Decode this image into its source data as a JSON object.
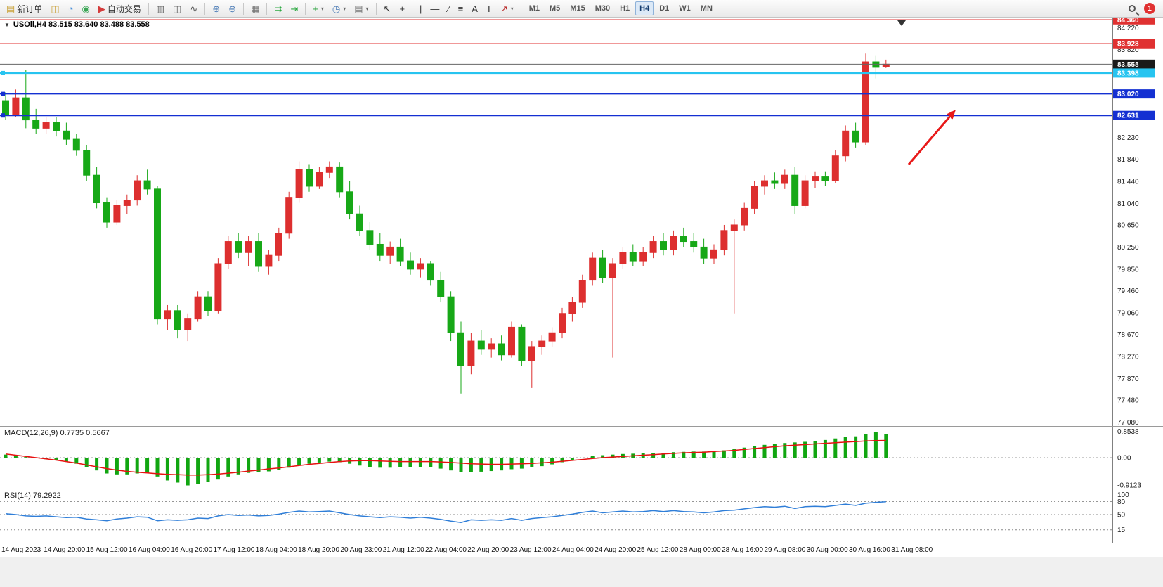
{
  "icons": {
    "collapse": "▼",
    "caret": "▾"
  },
  "toolbar": {
    "groups": [
      [
        {
          "name": "new-order-button",
          "glyph": "▤",
          "color": "#c9a23a",
          "label": "新订单"
        },
        {
          "name": "charts-button",
          "glyph": "◫",
          "color": "#c9a23a"
        },
        {
          "name": "profiles-button",
          "glyph": "◔",
          "color": "#4a90d9"
        },
        {
          "name": "community-button",
          "glyph": "◉",
          "color": "#3aa655"
        },
        {
          "name": "auto-trading-button",
          "glyph": "▶",
          "color": "#d43c3c",
          "label": "自动交易"
        }
      ],
      [
        {
          "name": "bar-chart-button",
          "glyph": "▥",
          "color": "#555"
        },
        {
          "name": "candlestick-chart-button",
          "glyph": "◫",
          "color": "#555"
        },
        {
          "name": "line-chart-button",
          "glyph": "∿",
          "color": "#555"
        }
      ],
      [
        {
          "name": "zoom-in-button",
          "glyph": "⊕",
          "color": "#4a7ab5"
        },
        {
          "name": "zoom-out-button",
          "glyph": "⊖",
          "color": "#4a7ab5"
        }
      ],
      [
        {
          "name": "tile-windows-button",
          "glyph": "▦",
          "color": "#777"
        }
      ],
      [
        {
          "name": "auto-scroll-button",
          "glyph": "⇉",
          "color": "#2faa44"
        },
        {
          "name": "chart-shift-button",
          "glyph": "⇥",
          "color": "#2faa44"
        }
      ],
      [
        {
          "name": "add-indicator-button",
          "glyph": "+",
          "color": "#1f9e33",
          "caret": true
        },
        {
          "name": "periods-button",
          "glyph": "◷",
          "color": "#4a7ab5",
          "caret": true
        },
        {
          "name": "templates-button",
          "glyph": "▤",
          "color": "#777",
          "caret": true
        }
      ],
      [
        {
          "name": "cursor-button",
          "glyph": "↖",
          "color": "#333"
        },
        {
          "name": "crosshair-button",
          "glyph": "+",
          "color": "#333"
        }
      ],
      [
        {
          "name": "vertical-line-button",
          "glyph": "|",
          "color": "#333"
        },
        {
          "name": "horizontal-line-button",
          "glyph": "—",
          "color": "#333"
        },
        {
          "name": "trendline-button",
          "glyph": "∕",
          "color": "#333"
        },
        {
          "name": "fibonacci-button",
          "glyph": "≡",
          "color": "#333"
        },
        {
          "name": "text-button",
          "glyph": "A",
          "color": "#333"
        },
        {
          "name": "text-label-button",
          "glyph": "T",
          "color": "#333"
        },
        {
          "name": "arrow-tools-button",
          "glyph": "↗",
          "color": "#b33",
          "caret": true
        }
      ]
    ],
    "timeframes": [
      "M1",
      "M5",
      "M15",
      "M30",
      "H1",
      "H4",
      "D1",
      "W1",
      "MN"
    ],
    "active_timeframe": "H4",
    "notification_count": "1"
  },
  "chart": {
    "symbol": "USOil",
    "period": "H4",
    "title": "USOil,H4  83.515 83.640 83.488 83.558",
    "ohlc": {
      "open": "83.515",
      "high": "83.640",
      "low": "83.488",
      "close": "83.558"
    }
  },
  "chart_data": {
    "type": "candlestick",
    "title": "USOil H4",
    "ylim": [
      77.05,
      84.3
    ],
    "colors": {
      "up": "#dd2f2f",
      "down": "#17a817"
    },
    "y_axis_ticks": [
      "84.220",
      "83.820",
      "82.230",
      "81.840",
      "81.440",
      "81.040",
      "80.650",
      "80.250",
      "79.850",
      "79.460",
      "79.060",
      "78.670",
      "78.270",
      "77.870",
      "77.480",
      "77.080"
    ],
    "x_labels": [
      "14 Aug 2023",
      "14 Aug 20:00",
      "15 Aug 12:00",
      "16 Aug 04:00",
      "16 Aug 20:00",
      "17 Aug 12:00",
      "18 Aug 04:00",
      "18 Aug 20:00",
      "20 Aug 23:00",
      "21 Aug 12:00",
      "22 Aug 04:00",
      "22 Aug 20:00",
      "23 Aug 12:00",
      "24 Aug 04:00",
      "24 Aug 20:00",
      "25 Aug 12:00",
      "28 Aug 00:00",
      "28 Aug 16:00",
      "29 Aug 08:00",
      "30 Aug 00:00",
      "30 Aug 16:00",
      "31 Aug 08:00"
    ],
    "candles": [
      [
        82.9,
        83.05,
        82.55,
        82.65
      ],
      [
        82.65,
        83.1,
        82.6,
        82.95
      ],
      [
        82.95,
        83.45,
        82.4,
        82.55
      ],
      [
        82.55,
        82.75,
        82.3,
        82.4
      ],
      [
        82.4,
        82.6,
        82.3,
        82.5
      ],
      [
        82.5,
        82.6,
        82.25,
        82.35
      ],
      [
        82.35,
        82.5,
        82.1,
        82.2
      ],
      [
        82.2,
        82.3,
        81.9,
        82.0
      ],
      [
        82.0,
        82.1,
        81.45,
        81.55
      ],
      [
        81.55,
        81.7,
        80.95,
        81.05
      ],
      [
        81.05,
        81.15,
        80.6,
        80.7
      ],
      [
        80.7,
        81.1,
        80.65,
        81.0
      ],
      [
        81.0,
        81.2,
        80.85,
        81.1
      ],
      [
        81.1,
        81.55,
        81.0,
        81.45
      ],
      [
        81.45,
        81.65,
        81.2,
        81.3
      ],
      [
        81.3,
        81.35,
        78.85,
        78.95
      ],
      [
        78.95,
        79.2,
        78.75,
        79.1
      ],
      [
        79.1,
        79.2,
        78.6,
        78.75
      ],
      [
        78.75,
        79.05,
        78.55,
        78.95
      ],
      [
        78.95,
        79.45,
        78.9,
        79.35
      ],
      [
        79.35,
        79.45,
        79.0,
        79.1
      ],
      [
        79.1,
        80.05,
        79.05,
        79.95
      ],
      [
        79.95,
        80.45,
        79.85,
        80.35
      ],
      [
        80.35,
        80.5,
        80.05,
        80.15
      ],
      [
        80.15,
        80.45,
        79.9,
        80.35
      ],
      [
        80.35,
        80.5,
        79.8,
        79.9
      ],
      [
        79.9,
        80.2,
        79.75,
        80.1
      ],
      [
        80.1,
        80.6,
        80.0,
        80.5
      ],
      [
        80.5,
        81.25,
        80.4,
        81.15
      ],
      [
        81.15,
        81.8,
        81.05,
        81.65
      ],
      [
        81.65,
        81.75,
        81.25,
        81.35
      ],
      [
        81.35,
        81.7,
        81.3,
        81.6
      ],
      [
        81.6,
        81.8,
        81.5,
        81.7
      ],
      [
        81.7,
        81.78,
        81.15,
        81.25
      ],
      [
        81.25,
        81.45,
        80.75,
        80.85
      ],
      [
        80.85,
        81.0,
        80.45,
        80.55
      ],
      [
        80.55,
        80.7,
        80.2,
        80.3
      ],
      [
        80.3,
        80.5,
        80.0,
        80.1
      ],
      [
        80.1,
        80.35,
        79.95,
        80.25
      ],
      [
        80.25,
        80.4,
        79.9,
        80.0
      ],
      [
        80.0,
        80.15,
        79.75,
        79.85
      ],
      [
        79.85,
        80.05,
        79.7,
        79.95
      ],
      [
        79.95,
        80.0,
        79.55,
        79.65
      ],
      [
        79.65,
        79.8,
        79.25,
        79.35
      ],
      [
        79.35,
        79.45,
        78.55,
        78.7
      ],
      [
        78.7,
        78.9,
        77.6,
        78.1
      ],
      [
        78.1,
        78.7,
        77.95,
        78.55
      ],
      [
        78.55,
        78.75,
        78.3,
        78.4
      ],
      [
        78.4,
        78.6,
        78.25,
        78.5
      ],
      [
        78.5,
        78.65,
        78.2,
        78.3
      ],
      [
        78.3,
        78.9,
        78.25,
        78.8
      ],
      [
        78.8,
        78.85,
        78.1,
        78.2
      ],
      [
        78.2,
        78.55,
        77.7,
        78.45
      ],
      [
        78.45,
        78.65,
        78.3,
        78.55
      ],
      [
        78.55,
        78.8,
        78.45,
        78.7
      ],
      [
        78.7,
        79.15,
        78.6,
        79.05
      ],
      [
        79.05,
        79.35,
        78.9,
        79.25
      ],
      [
        79.25,
        79.75,
        79.15,
        79.65
      ],
      [
        79.65,
        80.15,
        79.55,
        80.05
      ],
      [
        80.05,
        80.2,
        79.6,
        79.7
      ],
      [
        79.7,
        80.05,
        78.25,
        79.95
      ],
      [
        79.95,
        80.25,
        79.85,
        80.15
      ],
      [
        80.15,
        80.3,
        79.9,
        80.0
      ],
      [
        80.0,
        80.25,
        79.9,
        80.15
      ],
      [
        80.15,
        80.45,
        80.05,
        80.35
      ],
      [
        80.35,
        80.5,
        80.1,
        80.2
      ],
      [
        80.2,
        80.55,
        80.1,
        80.45
      ],
      [
        80.45,
        80.6,
        80.25,
        80.35
      ],
      [
        80.35,
        80.5,
        80.15,
        80.25
      ],
      [
        80.25,
        80.4,
        79.95,
        80.05
      ],
      [
        80.05,
        80.3,
        79.95,
        80.2
      ],
      [
        80.2,
        80.65,
        80.1,
        80.55
      ],
      [
        80.55,
        80.75,
        79.05,
        80.65
      ],
      [
        80.65,
        81.05,
        80.55,
        80.95
      ],
      [
        80.95,
        81.45,
        80.85,
        81.35
      ],
      [
        81.35,
        81.55,
        81.2,
        81.45
      ],
      [
        81.45,
        81.6,
        81.3,
        81.4
      ],
      [
        81.4,
        81.65,
        81.3,
        81.55
      ],
      [
        81.55,
        81.7,
        80.85,
        81.0
      ],
      [
        81.0,
        81.55,
        80.95,
        81.45
      ],
      [
        81.45,
        81.62,
        81.32,
        81.52
      ],
      [
        81.52,
        81.62,
        81.35,
        81.45
      ],
      [
        81.45,
        82.0,
        81.4,
        81.9
      ],
      [
        81.9,
        82.45,
        81.8,
        82.35
      ],
      [
        82.35,
        82.5,
        82.05,
        82.15
      ],
      [
        82.15,
        83.75,
        82.1,
        83.6
      ],
      [
        83.6,
        83.72,
        83.3,
        83.5
      ],
      [
        83.515,
        83.64,
        83.488,
        83.558
      ]
    ],
    "price_lines": [
      {
        "price": 84.36,
        "label": "84.360",
        "line_color": "#e03131",
        "box_color": "#e03131",
        "width": 1.5,
        "marker": false
      },
      {
        "price": 83.928,
        "label": "83.928",
        "line_color": "#e03131",
        "box_color": "#e03131",
        "width": 1.5,
        "marker": false
      },
      {
        "price": 83.558,
        "label": "83.558",
        "line_color": "#666666",
        "box_color": "#1a1a1a",
        "width": 1,
        "marker": false
      },
      {
        "price": 83.398,
        "label": "83.398",
        "line_color": "#27c4f0",
        "box_color": "#27c4f0",
        "width": 2.5,
        "marker": true
      },
      {
        "price": 83.02,
        "label": "83.020",
        "line_color": "#1430d2",
        "box_color": "#1430d2",
        "width": 1.5,
        "marker": true
      },
      {
        "price": 82.631,
        "label": "82.631",
        "line_color": "#1430d2",
        "box_color": "#1430d2",
        "width": 2,
        "marker": true
      }
    ],
    "arrow": {
      "from": [
        1293,
        209
      ],
      "to": [
        1360,
        131
      ],
      "color": "#e81919"
    },
    "macd": {
      "label": "MACD(12,26,9) 0.7735 0.5667",
      "scale": [
        "0.8538",
        "0.00",
        "-0.9123"
      ],
      "ylim": [
        -0.9123,
        0.8538
      ],
      "hist": [
        0.1,
        0.06,
        0.02,
        -0.02,
        -0.05,
        -0.08,
        -0.14,
        -0.2,
        -0.3,
        -0.42,
        -0.52,
        -0.55,
        -0.55,
        -0.52,
        -0.5,
        -0.62,
        -0.75,
        -0.82,
        -0.9123,
        -0.86,
        -0.8,
        -0.72,
        -0.62,
        -0.55,
        -0.5,
        -0.48,
        -0.45,
        -0.4,
        -0.33,
        -0.25,
        -0.2,
        -0.16,
        -0.13,
        -0.15,
        -0.2,
        -0.26,
        -0.3,
        -0.33,
        -0.33,
        -0.32,
        -0.32,
        -0.3,
        -0.32,
        -0.36,
        -0.42,
        -0.48,
        -0.48,
        -0.46,
        -0.44,
        -0.42,
        -0.38,
        -0.36,
        -0.32,
        -0.28,
        -0.22,
        -0.15,
        -0.08,
        -0.02,
        0.05,
        0.08,
        0.1,
        0.12,
        0.13,
        0.14,
        0.15,
        0.16,
        0.18,
        0.19,
        0.2,
        0.2,
        0.21,
        0.24,
        0.28,
        0.33,
        0.38,
        0.42,
        0.45,
        0.48,
        0.5,
        0.52,
        0.55,
        0.58,
        0.63,
        0.68,
        0.7,
        0.78,
        0.8538,
        0.7735
      ],
      "signal": [
        0.12,
        0.08,
        0.04,
        0.0,
        -0.04,
        -0.08,
        -0.13,
        -0.18,
        -0.24,
        -0.3,
        -0.36,
        -0.41,
        -0.45,
        -0.48,
        -0.5,
        -0.53,
        -0.55,
        -0.56,
        -0.57,
        -0.57,
        -0.56,
        -0.54,
        -0.51,
        -0.48,
        -0.44,
        -0.41,
        -0.37,
        -0.34,
        -0.3,
        -0.26,
        -0.22,
        -0.19,
        -0.16,
        -0.13,
        -0.11,
        -0.1,
        -0.1,
        -0.11,
        -0.12,
        -0.13,
        -0.13,
        -0.13,
        -0.13,
        -0.14,
        -0.16,
        -0.18,
        -0.2,
        -0.21,
        -0.22,
        -0.22,
        -0.21,
        -0.2,
        -0.19,
        -0.17,
        -0.15,
        -0.12,
        -0.09,
        -0.06,
        -0.03,
        0.0,
        0.02,
        0.04,
        0.06,
        0.08,
        0.1,
        0.12,
        0.14,
        0.16,
        0.17,
        0.18,
        0.2,
        0.22,
        0.24,
        0.27,
        0.3,
        0.33,
        0.36,
        0.39,
        0.41,
        0.43,
        0.45,
        0.47,
        0.49,
        0.51,
        0.53,
        0.55,
        0.56,
        0.5667
      ],
      "hist_color": "#11a611",
      "signal_color": "#e81010"
    },
    "rsi": {
      "label": "RSI(14) 79.2922",
      "scale_labels": [
        "100",
        "80",
        "50",
        "15"
      ],
      "scale_values": [
        100,
        80,
        50,
        15
      ],
      "levels": [
        80,
        50,
        15
      ],
      "ylim": [
        0,
        100
      ],
      "line_color": "#2f7ed8",
      "values": [
        52,
        50,
        47,
        46,
        47,
        45,
        43,
        44,
        40,
        38,
        36,
        40,
        42,
        45,
        44,
        36,
        38,
        37,
        38,
        42,
        41,
        47,
        50,
        48,
        49,
        47,
        48,
        51,
        55,
        58,
        56,
        57,
        58,
        54,
        50,
        47,
        45,
        43,
        45,
        44,
        42,
        44,
        42,
        39,
        35,
        32,
        38,
        37,
        38,
        37,
        41,
        37,
        41,
        43,
        45,
        48,
        51,
        55,
        58,
        54,
        56,
        58,
        56,
        57,
        59,
        57,
        59,
        57,
        56,
        54,
        56,
        59,
        60,
        63,
        66,
        68,
        67,
        69,
        64,
        68,
        69,
        68,
        71,
        74,
        71,
        76,
        78,
        79.29
      ]
    }
  }
}
